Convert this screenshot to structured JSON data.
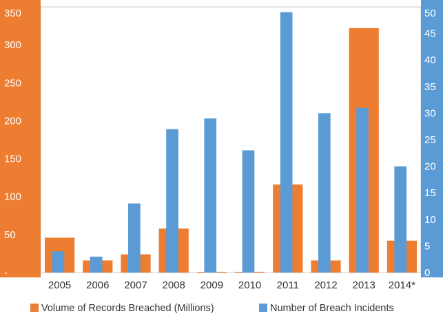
{
  "chart_data": {
    "type": "bar",
    "categories": [
      "2005",
      "2006",
      "2007",
      "2008",
      "2009",
      "2010",
      "2011",
      "2012",
      "2013",
      "2014*"
    ],
    "series": [
      {
        "name": "Volume of Records Breached (Millions)",
        "axis": "left",
        "color": "#ED7D31",
        "values": [
          46,
          16,
          24,
          58,
          1,
          1,
          116,
          16,
          322,
          42
        ]
      },
      {
        "name": "Number of Breach Incidents",
        "axis": "right",
        "color": "#5B9BD5",
        "values": [
          4,
          3,
          13,
          27,
          29,
          23,
          49,
          30,
          31,
          20
        ]
      }
    ],
    "left_axis": {
      "min": 0,
      "max": 350,
      "ticks": [
        "-",
        "50",
        "100",
        "150",
        "200",
        "250",
        "300",
        "350"
      ],
      "band_color": "#ED7D31"
    },
    "right_axis": {
      "min": 0,
      "max": 50,
      "ticks": [
        "0",
        "5",
        "10",
        "15",
        "20",
        "25",
        "30",
        "35",
        "40",
        "45",
        "50"
      ],
      "band_color": "#5B9BD5"
    },
    "grid": false,
    "legend_position": "bottom"
  }
}
